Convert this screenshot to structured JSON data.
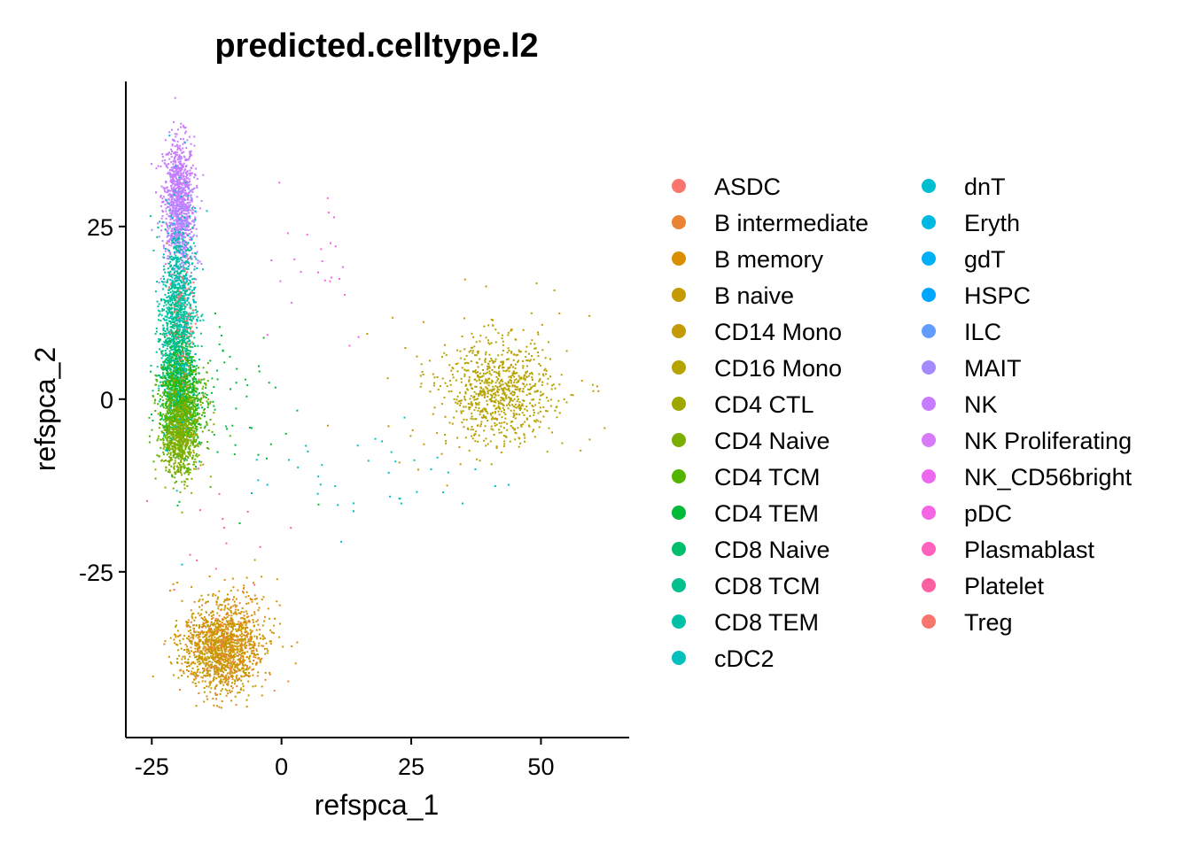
{
  "chart_data": {
    "type": "scatter",
    "title": "predicted.celltype.l2",
    "xlabel": "refspca_1",
    "ylabel": "refspca_2",
    "xlim": [
      -30,
      67
    ],
    "ylim": [
      -49,
      46
    ],
    "xticks": [
      -25,
      0,
      25,
      50
    ],
    "yticks": [
      -25,
      0,
      25
    ],
    "grid": false,
    "legend_position": "right",
    "series": [
      {
        "name": "ASDC",
        "color": "#F8766D"
      },
      {
        "name": "B intermediate",
        "color": "#EB8335"
      },
      {
        "name": "B memory",
        "color": "#DA8F00"
      },
      {
        "name": "B naive",
        "color": "#C49A00"
      },
      {
        "name": "CD14 Mono",
        "color": "#C19A05"
      },
      {
        "name": "CD16 Mono",
        "color": "#B5A300"
      },
      {
        "name": "CD4 CTL",
        "color": "#9EA700"
      },
      {
        "name": "CD4 Naive",
        "color": "#7CAE00"
      },
      {
        "name": "CD4 TCM",
        "color": "#53B400"
      },
      {
        "name": "CD4 TEM",
        "color": "#00BA38"
      },
      {
        "name": "CD8 Naive",
        "color": "#00BE6C"
      },
      {
        "name": "CD8 TCM",
        "color": "#00C08B"
      },
      {
        "name": "CD8 TEM",
        "color": "#00C1A6"
      },
      {
        "name": "cDC2",
        "color": "#00BFBC"
      },
      {
        "name": "dnT",
        "color": "#00BDD0"
      },
      {
        "name": "Eryth",
        "color": "#00B8E1"
      },
      {
        "name": "gdT",
        "color": "#00B0F6"
      },
      {
        "name": "HSPC",
        "color": "#00A5FF"
      },
      {
        "name": "ILC",
        "color": "#619CFF"
      },
      {
        "name": "MAIT",
        "color": "#A58AFF"
      },
      {
        "name": "NK",
        "color": "#C77CFF"
      },
      {
        "name": "NK Proliferating",
        "color": "#D77AF8"
      },
      {
        "name": "NK_CD56bright",
        "color": "#EC69EF"
      },
      {
        "name": "pDC",
        "color": "#F564E3"
      },
      {
        "name": "Plasmablast",
        "color": "#FF62BC"
      },
      {
        "name": "Platelet",
        "color": "#FB61A0"
      },
      {
        "name": "Treg",
        "color": "#F8766D"
      }
    ],
    "clusters": [
      {
        "series": "NK",
        "cx": -20,
        "cy": 29,
        "sx": 1.5,
        "sy": 4.5,
        "n": 900
      },
      {
        "series": "MAIT",
        "cx": -19.5,
        "cy": 24,
        "sx": 1.5,
        "sy": 4,
        "n": 250
      },
      {
        "series": "CD8 TEM",
        "cx": -20,
        "cy": 14,
        "sx": 1.6,
        "sy": 6,
        "n": 700
      },
      {
        "series": "CD8 TCM",
        "cx": -20.5,
        "cy": 8,
        "sx": 1.6,
        "sy": 5,
        "n": 400
      },
      {
        "series": "CD8 Naive",
        "cx": -20.5,
        "cy": 4,
        "sx": 1.5,
        "sy": 4,
        "n": 300
      },
      {
        "series": "CD4 TEM",
        "cx": -19.5,
        "cy": 1,
        "sx": 2,
        "sy": 3.5,
        "n": 500
      },
      {
        "series": "CD4 TCM",
        "cx": -19.5,
        "cy": -2,
        "sx": 2.2,
        "sy": 3.5,
        "n": 700
      },
      {
        "series": "CD4 Naive",
        "cx": -20,
        "cy": -6,
        "sx": 1.6,
        "sy": 2.5,
        "n": 450
      },
      {
        "series": "CD4 CTL",
        "cx": -18.5,
        "cy": -3,
        "sx": 2.5,
        "sy": 4,
        "n": 120
      },
      {
        "series": "Treg",
        "cx": -19,
        "cy": 12,
        "sx": 1.5,
        "sy": 5,
        "n": 80
      },
      {
        "series": "dnT",
        "cx": -19.5,
        "cy": 10,
        "sx": 2,
        "sy": 10,
        "n": 100
      },
      {
        "series": "CD16 Mono",
        "cx": 42,
        "cy": 1,
        "sx": 5,
        "sy": 3.5,
        "n": 700
      },
      {
        "series": "CD14 Mono",
        "cx": 40,
        "cy": 2,
        "sx": 10,
        "sy": 6,
        "n": 150
      },
      {
        "series": "B naive",
        "cx": -12,
        "cy": -36,
        "sx": 3.5,
        "sy": 3,
        "n": 1100
      },
      {
        "series": "B intermediate",
        "cx": -11,
        "cy": -36,
        "sx": 4,
        "sy": 3.5,
        "n": 250
      },
      {
        "series": "B memory",
        "cx": -10,
        "cy": -34,
        "sx": 4.5,
        "sy": 4,
        "n": 200
      },
      {
        "series": "cDC2",
        "cx": 18,
        "cy": -11,
        "sx": 13,
        "sy": 4,
        "n": 40
      },
      {
        "series": "pDC",
        "cx": 5,
        "cy": 23,
        "sx": 7,
        "sy": 8,
        "n": 25
      },
      {
        "series": "Platelet",
        "cx": -12,
        "cy": -20,
        "sx": 8,
        "sy": 6,
        "n": 15
      },
      {
        "series": "CD4 TEM",
        "cx": -10,
        "cy": 0,
        "sx": 6,
        "sy": 7,
        "n": 60
      }
    ]
  }
}
